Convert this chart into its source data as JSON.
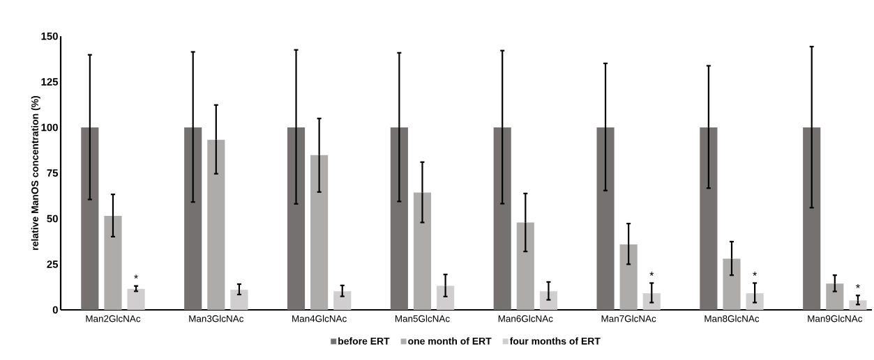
{
  "chart_data": {
    "type": "bar",
    "ylabel": "relative ManOS concentration (%)",
    "categories": [
      "Man2GlcNAc",
      "Man3GlcNAc",
      "Man4GlcNAc",
      "Man5GlcNAc",
      "Man6GlcNAc",
      "Man7GlcNAc",
      "Man8GlcNAc",
      "Man9GlcNAc"
    ],
    "series": [
      {
        "name": "before ERT",
        "color": "#767171",
        "values": [
          100,
          100,
          100,
          100,
          100,
          100,
          100,
          100
        ],
        "errors": [
          [
            60.5,
            139.8
          ],
          [
            59.1,
            141.4
          ],
          [
            58.1,
            142.5
          ],
          [
            59.4,
            140.9
          ],
          [
            58.2,
            142.1
          ],
          [
            65.4,
            135.1
          ],
          [
            66.7,
            133.8
          ],
          [
            56.0,
            144.3
          ]
        ]
      },
      {
        "name": "one month of ERT",
        "color": "#aeabab",
        "values": [
          51.5,
          93.2,
          84.8,
          64.3,
          47.9,
          35.9,
          28.0,
          14.4
        ],
        "errors": [
          [
            40.1,
            63.3
          ],
          [
            74.6,
            112.3
          ],
          [
            64.6,
            104.9
          ],
          [
            47.9,
            81.0
          ],
          [
            32.0,
            63.8
          ],
          [
            25.0,
            47.3
          ],
          [
            19.0,
            37.4
          ],
          [
            10.1,
            19.0
          ]
        ]
      },
      {
        "name": "four months of ERT",
        "color": "#d0cece",
        "values": [
          11.5,
          11.0,
          10.2,
          13.2,
          10.2,
          9.1,
          9.1,
          5.2
        ],
        "errors": [
          [
            10.2,
            13.1
          ],
          [
            8.4,
            14.1
          ],
          [
            7.4,
            13.4
          ],
          [
            7.3,
            19.4
          ],
          [
            5.5,
            15.3
          ],
          [
            4.0,
            14.7
          ],
          [
            4.0,
            14.7
          ],
          [
            2.9,
            7.9
          ]
        ],
        "value_labels": [
          "*",
          null,
          null,
          null,
          null,
          "*",
          "*",
          "*"
        ]
      }
    ],
    "ylim": [
      0,
      150
    ],
    "yticks": [
      0,
      25,
      50,
      75,
      100,
      125,
      150
    ],
    "grid": false,
    "legend": "bottom"
  }
}
